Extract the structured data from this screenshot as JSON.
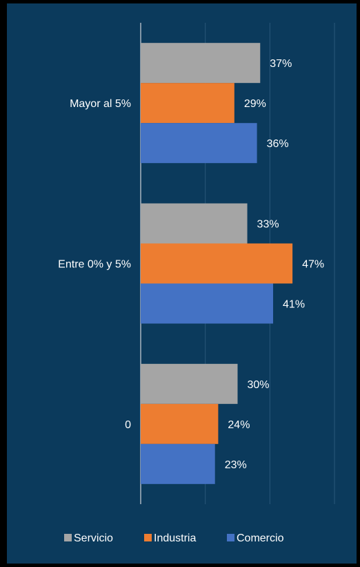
{
  "chart_data": {
    "type": "bar",
    "orientation": "horizontal",
    "categories": [
      "Mayor al 5%",
      "Entre 0% y 5%",
      "0"
    ],
    "series": [
      {
        "name": "Servicio",
        "values": [
          37,
          33,
          30
        ],
        "color": "#a5a5a5",
        "labels": [
          "37%",
          "33%",
          "30%"
        ]
      },
      {
        "name": "Industria",
        "values": [
          29,
          47,
          24
        ],
        "color": "#ed7d31",
        "labels": [
          "29%",
          "47%",
          "24%"
        ]
      },
      {
        "name": "Comercio",
        "values": [
          36,
          41,
          23
        ],
        "color": "#4472c4",
        "labels": [
          "36%",
          "41%",
          "23%"
        ]
      }
    ],
    "xlim": [
      0,
      60
    ],
    "grid": true,
    "legend_position": "bottom",
    "background": "#0b3a5c",
    "label_color": "#ffffff"
  }
}
